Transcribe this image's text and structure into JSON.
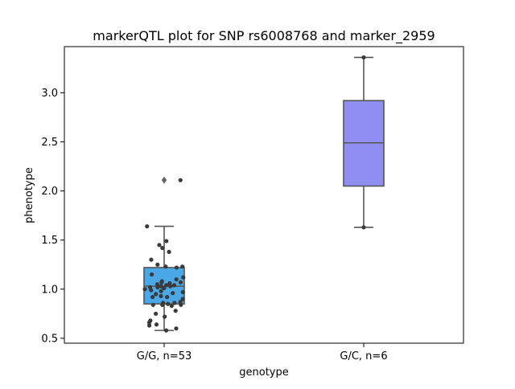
{
  "chart_data": {
    "type": "box",
    "title": "markerQTL plot for SNP rs6008768 and marker_2959",
    "xlabel": "genotype",
    "ylabel": "phenotype",
    "categories": [
      "G/G, n=53",
      "G/C, n=6"
    ],
    "ylim": [
      0.45,
      3.47
    ],
    "yticks": [
      0.5,
      1.0,
      1.5,
      2.0,
      2.5,
      3.0
    ],
    "ytick_labels": [
      "0.5",
      "1.0",
      "1.5",
      "2.0",
      "2.5",
      "3.0"
    ],
    "grid": false,
    "legend": "none",
    "boxes": [
      {
        "category": "G/G, n=53",
        "color": "#4aa8e6",
        "whisker_low": 0.58,
        "q1": 0.85,
        "median": 1.03,
        "q3": 1.22,
        "whisker_high": 1.64,
        "outliers": [
          2.11
        ]
      },
      {
        "category": "G/C, n=6",
        "color": "#8f8ff2",
        "whisker_low": 1.63,
        "q1": 2.05,
        "median": 2.49,
        "q3": 2.92,
        "whisker_high": 3.36,
        "outliers": []
      }
    ],
    "points": [
      {
        "category": "G/G, n=53",
        "values": [
          2.11,
          1.64,
          1.49,
          1.45,
          1.42,
          1.38,
          1.3,
          1.25,
          1.23,
          1.23,
          1.22,
          1.15,
          1.12,
          1.1,
          1.08,
          1.07,
          1.07,
          1.06,
          1.05,
          1.04,
          1.04,
          1.03,
          1.03,
          1.02,
          1.02,
          1.01,
          1.0,
          0.99,
          0.98,
          0.97,
          0.96,
          0.95,
          0.93,
          0.92,
          0.92,
          0.9,
          0.87,
          0.86,
          0.86,
          0.85,
          0.84,
          0.84,
          0.84,
          0.83,
          0.78,
          0.75,
          0.72,
          0.68,
          0.66,
          0.64,
          0.63,
          0.6,
          0.58
        ]
      },
      {
        "category": "G/C, n=6",
        "values": [
          3.36,
          1.63
        ]
      }
    ]
  }
}
